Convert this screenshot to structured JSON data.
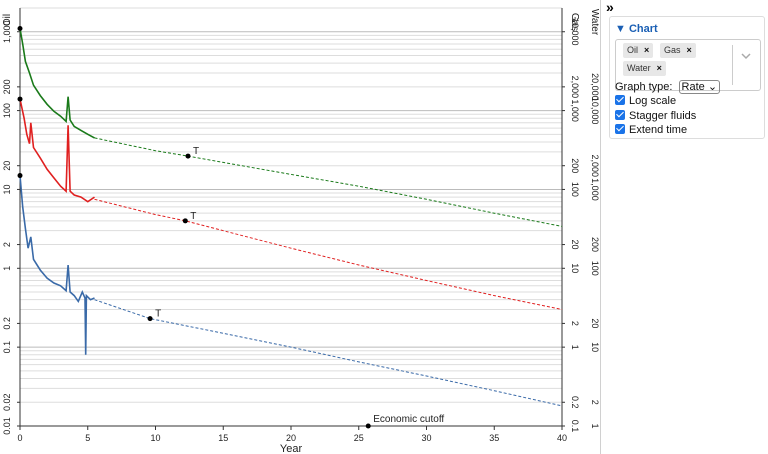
{
  "panel": {
    "collapse_icon": "»",
    "title": "Chart",
    "fluids": [
      "Oil",
      "Gas",
      "Water"
    ],
    "graph_type_label": "Graph type:",
    "graph_type_value": "Rate",
    "checkboxes": [
      {
        "label": "Log scale",
        "checked": true
      },
      {
        "label": "Stagger fluids",
        "checked": true
      },
      {
        "label": "Extend time",
        "checked": true
      }
    ]
  },
  "chart_data": {
    "type": "line",
    "xlabel": "Year",
    "xlim": [
      0,
      40
    ],
    "x_ticks": [
      0,
      5,
      10,
      15,
      20,
      25,
      30,
      35,
      40
    ],
    "log_scale": true,
    "grid": true,
    "axes": {
      "oil": {
        "label": "Oil",
        "ticks": [
          "0.01",
          "0.02",
          "0.1",
          "0.2",
          "1",
          "2",
          "10",
          "20",
          "100",
          "200",
          "1,000"
        ]
      },
      "gas": {
        "label": "Gas",
        "ticks": [
          "0.1",
          "0.2",
          "1",
          "2",
          "10",
          "20",
          "100",
          "200",
          "1,000",
          "2,000",
          "10,000"
        ]
      },
      "water": {
        "label": "Water",
        "ticks": [
          "1",
          "2",
          "10",
          "20",
          "100",
          "200",
          "1,000",
          "2,000",
          "10,000",
          "20,000"
        ]
      }
    },
    "colors": {
      "oil": "#1a7a1a",
      "gas": "#e02020",
      "water": "#3a6aa8"
    },
    "series": [
      {
        "name": "Oil",
        "history": [
          [
            0,
            1100
          ],
          [
            0.2,
            700
          ],
          [
            0.4,
            420
          ],
          [
            0.7,
            300
          ],
          [
            1.0,
            210
          ],
          [
            1.5,
            155
          ],
          [
            2.0,
            120
          ],
          [
            2.5,
            98
          ],
          [
            3.0,
            85
          ],
          [
            3.4,
            73
          ],
          [
            3.55,
            150
          ],
          [
            3.7,
            76
          ],
          [
            4.0,
            63
          ],
          [
            4.5,
            56
          ],
          [
            5.0,
            50
          ],
          [
            5.5,
            45
          ]
        ],
        "forecast": [
          [
            5.5,
            45
          ],
          [
            10,
            31
          ],
          [
            12.4,
            26.5
          ],
          [
            15,
            22
          ],
          [
            20,
            15.5
          ],
          [
            25,
            11
          ],
          [
            30,
            7.5
          ],
          [
            35,
            5
          ],
          [
            40,
            3.4
          ]
        ],
        "start": [
          0,
          1100
        ],
        "marker": {
          "x": 12.4,
          "y": 26.5,
          "label": "T"
        }
      },
      {
        "name": "Gas",
        "history": [
          [
            0,
            1400
          ],
          [
            0.3,
            800
          ],
          [
            0.5,
            500
          ],
          [
            0.7,
            380
          ],
          [
            0.8,
            700
          ],
          [
            1.0,
            340
          ],
          [
            1.5,
            250
          ],
          [
            2.0,
            180
          ],
          [
            2.5,
            140
          ],
          [
            3.0,
            110
          ],
          [
            3.4,
            95
          ],
          [
            3.55,
            650
          ],
          [
            3.7,
            95
          ],
          [
            4.0,
            85
          ],
          [
            4.5,
            80
          ],
          [
            5.0,
            70
          ],
          [
            5.5,
            80
          ]
        ],
        "forecast": [
          [
            5.5,
            75
          ],
          [
            10,
            48
          ],
          [
            12.2,
            40
          ],
          [
            15,
            30
          ],
          [
            20,
            18
          ],
          [
            25,
            11
          ],
          [
            30,
            7
          ],
          [
            35,
            4.5
          ],
          [
            40,
            3
          ]
        ],
        "start": [
          0,
          1400
        ],
        "marker": {
          "x": 12.2,
          "y": 40,
          "label": "T"
        }
      },
      {
        "name": "Water",
        "history": [
          [
            0,
            1500
          ],
          [
            0.2,
            600
          ],
          [
            0.4,
            320
          ],
          [
            0.6,
            180
          ],
          [
            0.8,
            250
          ],
          [
            1.0,
            130
          ],
          [
            1.5,
            95
          ],
          [
            2.0,
            75
          ],
          [
            2.5,
            65
          ],
          [
            3.0,
            60
          ],
          [
            3.4,
            52
          ],
          [
            3.55,
            110
          ],
          [
            3.7,
            50
          ],
          [
            4.0,
            45
          ],
          [
            4.3,
            38
          ],
          [
            4.6,
            50
          ],
          [
            4.8,
            42
          ],
          [
            4.85,
            8
          ],
          [
            4.9,
            45
          ],
          [
            5.2,
            40
          ],
          [
            5.5,
            42
          ]
        ],
        "forecast": [
          [
            5.5,
            40
          ],
          [
            9.6,
            23
          ],
          [
            15,
            15
          ],
          [
            20,
            10
          ],
          [
            25,
            6.5
          ],
          [
            30,
            4.3
          ],
          [
            35,
            2.8
          ],
          [
            40,
            1.8
          ]
        ],
        "start": [
          0,
          1500
        ],
        "marker": {
          "x": 9.6,
          "y": 23,
          "label": "T"
        }
      }
    ],
    "economic_cutoff": {
      "x": 25.7,
      "label": "Economic cutoff"
    }
  }
}
